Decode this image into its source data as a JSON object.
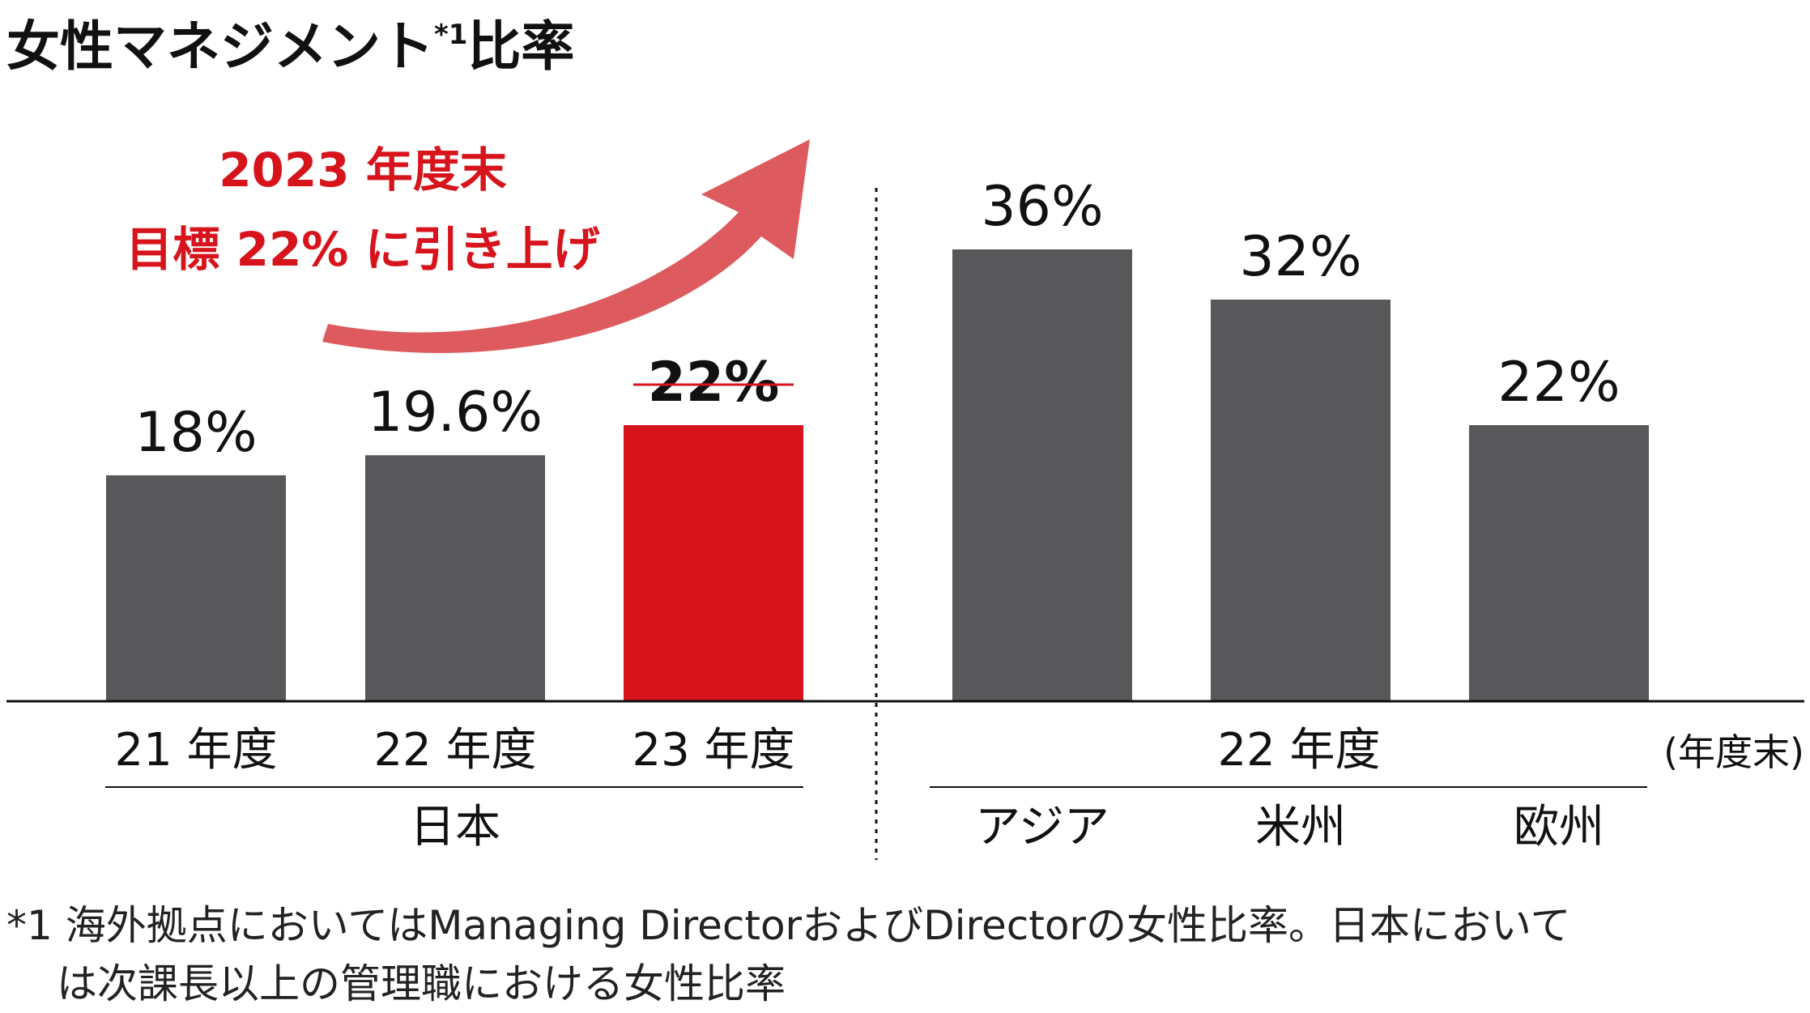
{
  "title": {
    "main": "女性マネジメント",
    "superscript": "*1",
    "suffix": "比率"
  },
  "annotation": {
    "line1": "2023 年度末",
    "line2": "目標 22% に引き上げ"
  },
  "colors": {
    "bar_default": "#58585a",
    "bar_target": "#d7141c",
    "accent_text": "#d7141c",
    "arrow": "#dd5b5f",
    "text": "#111111"
  },
  "unit_note": "(年度末)",
  "footnote": {
    "line1": "*1 海外拠点においてはManaging DirectorおよびDirectorの女性比率。日本において",
    "line2": "は次課長以上の管理職における女性比率"
  },
  "chart_data": [
    {
      "type": "bar",
      "group_label": "日本",
      "categories": [
        "21 年度",
        "22 年度",
        "23 年度"
      ],
      "values": [
        18,
        19.6,
        22
      ],
      "value_labels": [
        "18%",
        "19.6%",
        "22%"
      ],
      "highlight": [
        false,
        false,
        true
      ],
      "ylim": [
        0,
        40
      ]
    },
    {
      "type": "bar",
      "group_label": "22 年度",
      "categories": [
        "アジア",
        "米州",
        "欧州"
      ],
      "values": [
        36,
        32,
        22
      ],
      "value_labels": [
        "36%",
        "32%",
        "22%"
      ],
      "highlight": [
        false,
        false,
        false
      ],
      "ylim": [
        0,
        40
      ]
    }
  ]
}
